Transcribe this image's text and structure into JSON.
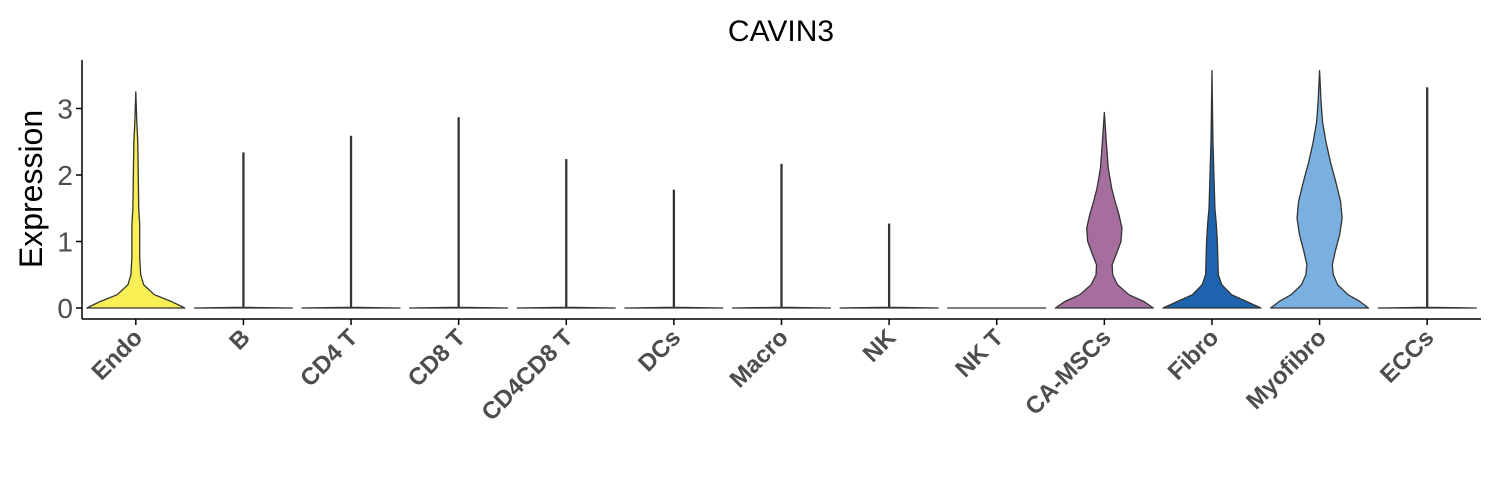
{
  "chart_data": {
    "type": "violin",
    "title": "CAVIN3",
    "xlabel": "",
    "ylabel": "Expression",
    "ylim": [
      -0.15,
      3.75
    ],
    "yticks": [
      0,
      1,
      2,
      3
    ],
    "grid": false,
    "legend": "none",
    "categories": [
      "Endo",
      "B",
      "CD4 T",
      "CD8 T",
      "CD4CD8 T",
      "DCs",
      "Macro",
      "NK",
      "NK T",
      "CA-MSCs",
      "Fibro",
      "Myofibro",
      "ECCs"
    ],
    "series": [
      {
        "category": "Endo",
        "color": "#f7ef53",
        "max": 3.25,
        "density": [
          [
            0.0,
            1.0
          ],
          [
            0.1,
            0.72
          ],
          [
            0.2,
            0.38
          ],
          [
            0.35,
            0.16
          ],
          [
            0.5,
            0.1
          ],
          [
            0.75,
            0.08
          ],
          [
            1.0,
            0.08
          ],
          [
            1.25,
            0.08
          ],
          [
            1.5,
            0.06
          ],
          [
            2.0,
            0.05
          ],
          [
            2.5,
            0.04
          ],
          [
            2.8,
            0.02
          ],
          [
            3.25,
            0.0
          ]
        ]
      },
      {
        "category": "B",
        "color": "#4d4d4d",
        "max": 2.33,
        "density": [
          [
            0.0,
            1.0
          ],
          [
            0.01,
            0.01
          ],
          [
            2.33,
            0.01
          ]
        ]
      },
      {
        "category": "CD4 T",
        "color": "#4d4d4d",
        "max": 2.58,
        "density": [
          [
            0.0,
            1.0
          ],
          [
            0.01,
            0.01
          ],
          [
            2.58,
            0.01
          ]
        ]
      },
      {
        "category": "CD8 T",
        "color": "#4d4d4d",
        "max": 2.86,
        "density": [
          [
            0.0,
            1.0
          ],
          [
            0.01,
            0.01
          ],
          [
            2.86,
            0.01
          ]
        ]
      },
      {
        "category": "CD4CD8 T",
        "color": "#4d4d4d",
        "max": 2.23,
        "density": [
          [
            0.0,
            1.0
          ],
          [
            0.01,
            0.01
          ],
          [
            2.23,
            0.01
          ]
        ]
      },
      {
        "category": "DCs",
        "color": "#4d4d4d",
        "max": 1.77,
        "density": [
          [
            0.0,
            1.0
          ],
          [
            0.01,
            0.01
          ],
          [
            1.77,
            0.01
          ]
        ]
      },
      {
        "category": "Macro",
        "color": "#4d4d4d",
        "max": 2.16,
        "density": [
          [
            0.0,
            1.0
          ],
          [
            0.01,
            0.01
          ],
          [
            2.16,
            0.01
          ]
        ]
      },
      {
        "category": "NK",
        "color": "#4d4d4d",
        "max": 1.26,
        "density": [
          [
            0.0,
            1.0
          ],
          [
            0.01,
            0.01
          ],
          [
            1.26,
            0.01
          ]
        ]
      },
      {
        "category": "NK T",
        "color": "#4d4d4d",
        "max": 0.0,
        "density": [
          [
            0.0,
            1.0
          ]
        ]
      },
      {
        "category": "CA-MSCs",
        "color": "#a56e9f",
        "max": 2.94,
        "density": [
          [
            0.0,
            1.0
          ],
          [
            0.1,
            0.8
          ],
          [
            0.2,
            0.5
          ],
          [
            0.35,
            0.27
          ],
          [
            0.5,
            0.17
          ],
          [
            0.65,
            0.16
          ],
          [
            0.8,
            0.24
          ],
          [
            1.0,
            0.34
          ],
          [
            1.2,
            0.36
          ],
          [
            1.4,
            0.3
          ],
          [
            1.6,
            0.22
          ],
          [
            1.8,
            0.15
          ],
          [
            2.1,
            0.08
          ],
          [
            2.5,
            0.04
          ],
          [
            2.94,
            0.0
          ]
        ]
      },
      {
        "category": "Fibro",
        "color": "#1e63ad",
        "max": 3.57,
        "density": [
          [
            0.0,
            1.0
          ],
          [
            0.1,
            0.7
          ],
          [
            0.2,
            0.4
          ],
          [
            0.35,
            0.2
          ],
          [
            0.5,
            0.13
          ],
          [
            0.75,
            0.12
          ],
          [
            1.0,
            0.11
          ],
          [
            1.25,
            0.09
          ],
          [
            1.5,
            0.06
          ],
          [
            2.0,
            0.04
          ],
          [
            2.5,
            0.02
          ],
          [
            3.0,
            0.01
          ],
          [
            3.57,
            0.0
          ]
        ]
      },
      {
        "category": "Myofibro",
        "color": "#7ab0e0",
        "max": 3.57,
        "density": [
          [
            0.0,
            1.0
          ],
          [
            0.1,
            0.82
          ],
          [
            0.2,
            0.58
          ],
          [
            0.35,
            0.37
          ],
          [
            0.5,
            0.28
          ],
          [
            0.65,
            0.26
          ],
          [
            0.85,
            0.32
          ],
          [
            1.1,
            0.41
          ],
          [
            1.35,
            0.46
          ],
          [
            1.6,
            0.43
          ],
          [
            1.9,
            0.33
          ],
          [
            2.2,
            0.22
          ],
          [
            2.5,
            0.13
          ],
          [
            2.8,
            0.06
          ],
          [
            3.1,
            0.03
          ],
          [
            3.57,
            0.0
          ]
        ]
      },
      {
        "category": "ECCs",
        "color": "#4d4d4d",
        "max": 3.31,
        "density": [
          [
            0.0,
            1.0
          ],
          [
            0.01,
            0.01
          ],
          [
            3.31,
            0.01
          ]
        ]
      }
    ]
  }
}
